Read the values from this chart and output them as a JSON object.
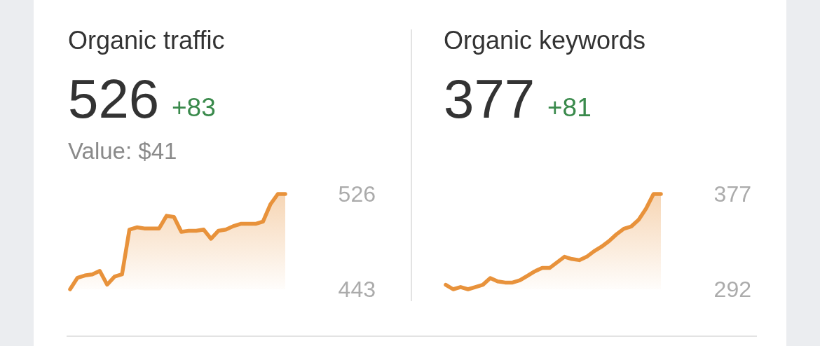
{
  "chart_data": [
    {
      "type": "area",
      "title": "Organic traffic",
      "annotations": [
        "526",
        "+83",
        "Value: $41"
      ],
      "categories": [
        null,
        null,
        null,
        null,
        null,
        null,
        null,
        null,
        null,
        null,
        null,
        null,
        null,
        null,
        null,
        null,
        null,
        null,
        null,
        null,
        null,
        null,
        null,
        null,
        null,
        null,
        null,
        null,
        null,
        null
      ],
      "values": [
        443,
        453,
        455,
        456,
        459,
        447,
        454,
        456,
        495,
        497,
        496,
        496,
        496,
        507,
        506,
        493,
        494,
        494,
        495,
        487,
        494,
        495,
        498,
        500,
        500,
        500,
        502,
        517,
        526,
        526
      ],
      "color": "#e8923b",
      "ylim": [
        443,
        526
      ],
      "yticks": [
        443,
        526
      ],
      "tick_labels": "y"
    },
    {
      "type": "area",
      "title": "Organic keywords",
      "annotations": [
        "377",
        "+81"
      ],
      "categories": [
        null,
        null,
        null,
        null,
        null,
        null,
        null,
        null,
        null,
        null,
        null,
        null,
        null,
        null,
        null,
        null,
        null,
        null,
        null,
        null,
        null,
        null,
        null,
        null,
        null,
        null,
        null,
        null,
        null,
        null
      ],
      "values": [
        296,
        292,
        294,
        292,
        294,
        296,
        302,
        299,
        298,
        298,
        300,
        304,
        308,
        311,
        311,
        316,
        321,
        319,
        318,
        321,
        326,
        330,
        335,
        341,
        346,
        348,
        354,
        364,
        377,
        377
      ],
      "color": "#e8923b",
      "ylim": [
        292,
        377
      ],
      "yticks": [
        292,
        377
      ],
      "tick_labels": "y"
    }
  ]
}
